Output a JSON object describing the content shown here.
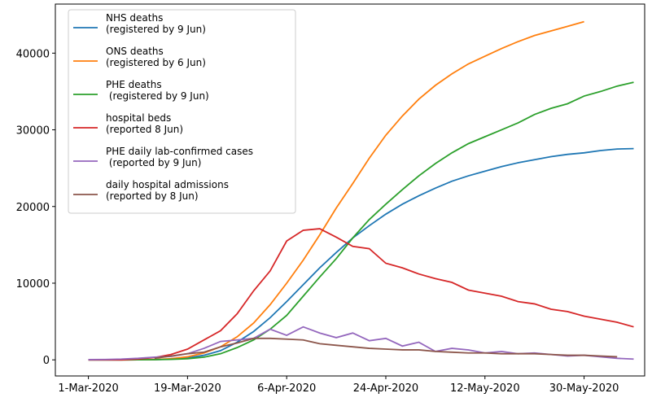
{
  "chart_data": {
    "type": "line",
    "x": [
      "2020-03-01",
      "2020-03-04",
      "2020-03-07",
      "2020-03-10",
      "2020-03-13",
      "2020-03-16",
      "2020-03-19",
      "2020-03-22",
      "2020-03-25",
      "2020-03-28",
      "2020-03-31",
      "2020-04-03",
      "2020-04-06",
      "2020-04-09",
      "2020-04-12",
      "2020-04-15",
      "2020-04-18",
      "2020-04-21",
      "2020-04-24",
      "2020-04-27",
      "2020-04-30",
      "2020-05-03",
      "2020-05-06",
      "2020-05-09",
      "2020-05-12",
      "2020-05-15",
      "2020-05-18",
      "2020-05-21",
      "2020-05-24",
      "2020-05-27",
      "2020-05-30",
      "2020-06-02",
      "2020-06-05",
      "2020-06-08"
    ],
    "series": [
      {
        "name": "NHS deaths\n(registered by 9 Jun)",
        "color": "#1f77b4",
        "values": [
          0,
          0,
          0,
          10,
          30,
          100,
          250,
          600,
          1200,
          2300,
          3700,
          5500,
          7600,
          9800,
          12000,
          14000,
          15900,
          17500,
          19000,
          20300,
          21400,
          22400,
          23300,
          24000,
          24600,
          25200,
          25700,
          26100,
          26500,
          26800,
          27000,
          27300,
          27500,
          27550
        ]
      },
      {
        "name": "ONS deaths\n(registered by 6 Jun)",
        "color": "#ff7f0e",
        "values": [
          0,
          0,
          0,
          10,
          40,
          150,
          400,
          900,
          1700,
          3000,
          4800,
          7200,
          10000,
          13000,
          16300,
          19800,
          23000,
          26300,
          29300,
          31800,
          34000,
          35800,
          37300,
          38600,
          39600,
          40600,
          41500,
          42300,
          42900,
          43500,
          44100,
          null,
          null,
          null
        ]
      },
      {
        "name": "PHE deaths\n (registered by 9 Jun)",
        "color": "#2ca02c",
        "values": [
          0,
          0,
          0,
          10,
          20,
          70,
          150,
          350,
          800,
          1600,
          2600,
          4000,
          5800,
          8300,
          10800,
          13200,
          15900,
          18300,
          20300,
          22200,
          24000,
          25600,
          27000,
          28200,
          29100,
          30000,
          30900,
          32000,
          32800,
          33400,
          34400,
          35000,
          35700,
          36200
        ]
      },
      {
        "name": "hospital beds\n(reported 8 Jun)",
        "color": "#d62728",
        "values": [
          0,
          0,
          0,
          100,
          300,
          700,
          1400,
          2600,
          3800,
          6000,
          9000,
          11600,
          15500,
          16900,
          17100,
          16000,
          14800,
          14500,
          12600,
          12000,
          11200,
          10600,
          10100,
          9100,
          8700,
          8300,
          7600,
          7300,
          6600,
          6300,
          5700,
          5300,
          4900,
          4300
        ]
      },
      {
        "name": "PHE daily lab-confirmed cases\n (reported by 9 Jun)",
        "color": "#9467bd",
        "values": [
          30,
          50,
          100,
          200,
          350,
          450,
          800,
          1500,
          2400,
          2600,
          2800,
          4000,
          3200,
          4300,
          3500,
          2900,
          3500,
          2500,
          2800,
          1800,
          2300,
          1100,
          1500,
          1300,
          900,
          1100,
          800,
          900,
          700,
          500,
          600,
          400,
          200,
          100
        ]
      },
      {
        "name": "daily hospital admissions\n(reported by 8 Jun)",
        "color": "#8c564b",
        "values": [
          null,
          null,
          null,
          null,
          200,
          500,
          800,
          1000,
          1700,
          2200,
          2800,
          2800,
          2700,
          2600,
          2100,
          1900,
          1700,
          1500,
          1400,
          1300,
          1300,
          1100,
          1000,
          900,
          900,
          800,
          800,
          800,
          700,
          600,
          600,
          500,
          400,
          null
        ]
      }
    ],
    "xlim": [
      "2020-02-24",
      "2020-06-10"
    ],
    "xticks": [
      {
        "value": "2020-03-01",
        "label": "1-Mar-2020"
      },
      {
        "value": "2020-03-19",
        "label": "19-Mar-2020"
      },
      {
        "value": "2020-04-06",
        "label": "6-Apr-2020"
      },
      {
        "value": "2020-04-24",
        "label": "24-Apr-2020"
      },
      {
        "value": "2020-05-12",
        "label": "12-May-2020"
      },
      {
        "value": "2020-05-30",
        "label": "30-May-2020"
      }
    ],
    "ylim": [
      -2100,
      46400
    ],
    "yticks": [
      0,
      10000,
      20000,
      30000,
      40000
    ],
    "legend": "upper-left"
  }
}
